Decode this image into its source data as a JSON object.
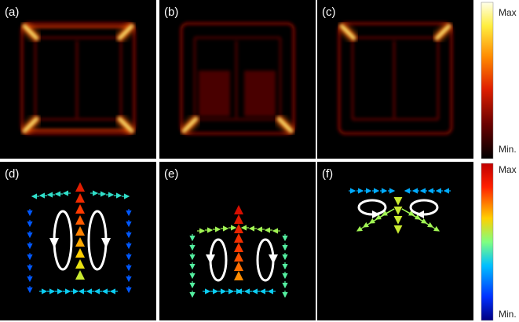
{
  "panels": [
    {
      "label": "(a)"
    },
    {
      "label": "(b)"
    },
    {
      "label": "(c)"
    },
    {
      "label": "(d)"
    },
    {
      "label": "(e)"
    },
    {
      "label": "(f)"
    }
  ],
  "colorbars": [
    {
      "max": "Max",
      "min": "Min."
    },
    {
      "max": "Max",
      "min": "Min."
    }
  ]
}
